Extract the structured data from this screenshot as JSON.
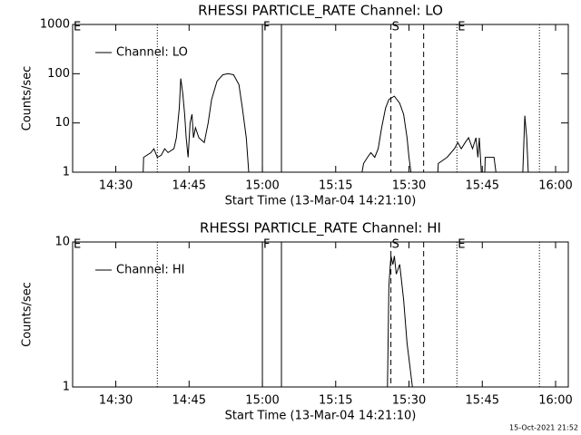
{
  "chart_data": [
    {
      "type": "line",
      "title": "RHESSI PARTICLE_RATE Channel: LO",
      "xlabel": "Start Time (13-Mar-04 14:21:10)",
      "ylabel": "Counts/sec",
      "log_y": true,
      "xlim": [
        "14:21:10",
        "16:02:36"
      ],
      "ylim": [
        1,
        1000
      ],
      "xticks": [
        "14:30",
        "14:45",
        "15:00",
        "15:15",
        "15:30",
        "15:45",
        "16:00"
      ],
      "yticks": [
        1,
        10,
        100,
        1000
      ],
      "x": [
        "14:21:30",
        "14:35:36",
        "14:35:42",
        "14:37:12",
        "14:37:48",
        "14:38:30",
        "14:39:18",
        "14:40:00",
        "14:40:42",
        "14:41:54",
        "14:42:24",
        "14:43:00",
        "14:43:18",
        "14:43:42",
        "14:44:06",
        "14:44:24",
        "14:44:48",
        "14:45:12",
        "14:45:36",
        "14:45:54",
        "14:46:18",
        "14:47:00",
        "14:48:06",
        "14:48:54",
        "14:49:36",
        "14:50:42",
        "14:51:54",
        "14:53:00",
        "14:54:06",
        "14:55:12",
        "14:55:54",
        "14:56:42",
        "14:57:12",
        "15:20:24",
        "15:20:42",
        "15:21:30",
        "15:22:12",
        "15:23:00",
        "15:23:42",
        "15:24:24",
        "15:25:12",
        "15:25:54",
        "15:27:00",
        "15:28:06",
        "15:28:54",
        "15:29:36",
        "15:30:00",
        "15:30:24",
        "15:35:54",
        "15:36:00",
        "15:37:48",
        "15:39:18",
        "15:40:00",
        "15:40:42",
        "15:41:30",
        "15:42:12",
        "15:43:00",
        "15:43:42",
        "15:44:06",
        "15:44:24",
        "15:44:48",
        "15:45:30",
        "15:45:36",
        "15:47:24",
        "15:47:48",
        "15:53:18",
        "15:53:42",
        "15:54:06",
        "15:54:24",
        "16:02:36"
      ],
      "series": [
        {
          "name": "Channel: LO",
          "color": "#000000",
          "values": [
            1,
            1,
            2,
            2.5,
            3,
            2,
            2.2,
            3,
            2.5,
            3,
            5,
            20,
            80,
            40,
            15,
            5,
            2,
            10,
            15,
            5,
            8,
            5,
            4,
            10,
            30,
            70,
            95,
            100,
            95,
            60,
            20,
            5,
            1,
            1,
            1.5,
            2,
            2.5,
            2,
            3,
            8,
            20,
            30,
            35,
            25,
            15,
            5,
            2,
            1,
            1,
            1.5,
            2,
            3,
            4,
            3,
            4,
            5,
            3,
            5,
            2,
            5,
            1,
            1,
            2,
            2,
            1,
            1,
            14,
            5,
            1,
            1
          ]
        }
      ],
      "markers": [
        {
          "x": "14:38:30",
          "style": "dotted"
        },
        {
          "x": "15:00:00",
          "style": "solid"
        },
        {
          "x": "15:03:54",
          "style": "solid"
        },
        {
          "x": "15:26:18",
          "style": "dashed"
        },
        {
          "x": "15:33:00",
          "style": "dashed"
        },
        {
          "x": "15:39:48",
          "style": "dotted"
        },
        {
          "x": "15:56:42",
          "style": "dotted"
        }
      ],
      "flags": [
        {
          "x": "14:21:10",
          "label": "E"
        },
        {
          "x": "15:00:00",
          "label": "F"
        },
        {
          "x": "15:26:18",
          "label": "S"
        },
        {
          "x": "15:39:48",
          "label": "E"
        }
      ]
    },
    {
      "type": "line",
      "title": "RHESSI PARTICLE_RATE Channel: HI",
      "xlabel": "Start Time (13-Mar-04 14:21:10)",
      "ylabel": "Counts/sec",
      "log_y": true,
      "xlim": [
        "14:21:10",
        "16:02:36"
      ],
      "ylim": [
        1,
        10
      ],
      "xticks": [
        "14:30",
        "14:45",
        "15:00",
        "15:15",
        "15:30",
        "15:45",
        "16:00"
      ],
      "yticks": [
        1,
        10
      ],
      "x": [
        "14:21:30",
        "15:25:36",
        "15:25:54",
        "15:26:18",
        "15:26:42",
        "15:27:00",
        "15:27:24",
        "15:28:06",
        "15:28:54",
        "15:29:36",
        "15:30:42",
        "16:02:36"
      ],
      "series": [
        {
          "name": "Channel: HI",
          "color": "#000000",
          "values": [
            1,
            1,
            5,
            8,
            7,
            8,
            6,
            7,
            4,
            2,
            1,
            1
          ]
        }
      ],
      "markers": [
        {
          "x": "14:38:30",
          "style": "dotted"
        },
        {
          "x": "15:00:00",
          "style": "solid"
        },
        {
          "x": "15:03:54",
          "style": "solid"
        },
        {
          "x": "15:26:18",
          "style": "dashed"
        },
        {
          "x": "15:33:00",
          "style": "dashed"
        },
        {
          "x": "15:39:48",
          "style": "dotted"
        },
        {
          "x": "15:56:42",
          "style": "dotted"
        }
      ],
      "flags": [
        {
          "x": "14:21:10",
          "label": "E"
        },
        {
          "x": "15:00:00",
          "label": "F"
        },
        {
          "x": "15:26:18",
          "label": "S"
        },
        {
          "x": "15:39:48",
          "label": "E"
        }
      ]
    }
  ],
  "footer": "15-Oct-2021 21:52"
}
